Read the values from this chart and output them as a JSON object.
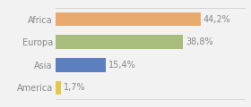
{
  "categories": [
    "America",
    "Asia",
    "Europa",
    "Africa"
  ],
  "values": [
    1.7,
    15.4,
    38.8,
    44.2
  ],
  "bar_colors": [
    "#e8c84a",
    "#5b7fbf",
    "#a8bc7b",
    "#e8aa6e"
  ],
  "labels": [
    "1,7%",
    "15,4%",
    "38,8%",
    "44,2%"
  ],
  "background_color": "#f2f2f2",
  "xlim": [
    0,
    58
  ],
  "bar_height": 0.6,
  "text_color": "#888888",
  "label_fontsize": 7.0,
  "ytick_fontsize": 7.0
}
